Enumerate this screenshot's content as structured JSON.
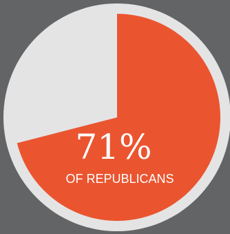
{
  "chart_data": {
    "type": "pie",
    "title": "",
    "slices": [
      {
        "label": "Republicans",
        "value": 71,
        "color": "#EA5530"
      },
      {
        "label": "",
        "value": 29,
        "color": "#E4E4E5"
      }
    ]
  },
  "labels": {
    "percent": "71%",
    "subtitle": "OF REPUBLICANS"
  },
  "colors": {
    "background": "#636466",
    "ring": "#E4E4E5",
    "accent": "#EA5530",
    "text": "#FFFFFF"
  }
}
